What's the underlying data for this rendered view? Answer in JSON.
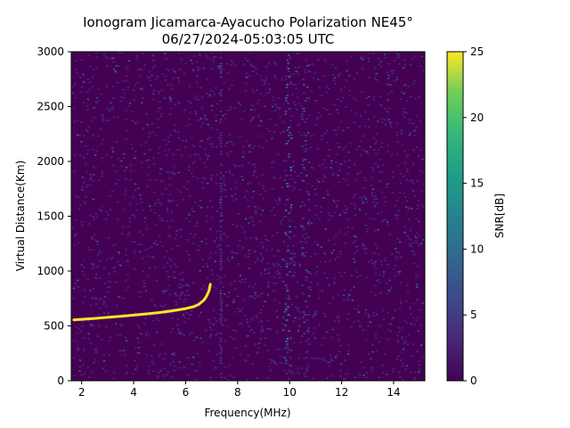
{
  "chart_data": {
    "type": "heatmap",
    "title": "Ionogram Jicamarca-Ayacucho Polarization NE45°",
    "subtitle": "06/27/2024-05:03:05 UTC",
    "xlabel": "Frequency(MHz)",
    "ylabel": "Virtual Distance(Km)",
    "xlim": [
      1.6,
      15.2
    ],
    "ylim": [
      0,
      3000
    ],
    "xticks": [
      "2",
      "4",
      "6",
      "8",
      "10",
      "12",
      "14"
    ],
    "yticks": [
      "0",
      "500",
      "1000",
      "1500",
      "2000",
      "2500",
      "3000"
    ],
    "colorbar": {
      "label": "SNR[dB]",
      "range": [
        0,
        25
      ],
      "ticks": [
        "0",
        "5",
        "10",
        "15",
        "20",
        "25"
      ],
      "colormap": "viridis"
    },
    "grid": false,
    "trace": {
      "frequency_mhz": [
        1.7,
        2.0,
        2.5,
        3.0,
        3.5,
        4.0,
        4.5,
        5.0,
        5.5,
        6.0,
        6.3,
        6.5,
        6.7,
        6.8,
        6.9,
        6.95
      ],
      "virtual_distance_km": [
        555,
        560,
        568,
        578,
        588,
        598,
        610,
        622,
        638,
        658,
        675,
        695,
        735,
        770,
        820,
        880
      ],
      "snr_db": 25
    },
    "interference_bands": [
      {
        "frequency_mhz": [
          9.8,
          10.1
        ],
        "snr_db": 6
      },
      {
        "frequency_mhz": [
          10.4,
          10.8
        ],
        "snr_db": 4
      },
      {
        "frequency_mhz": [
          7.3,
          7.4
        ],
        "snr_db": 3
      }
    ]
  }
}
